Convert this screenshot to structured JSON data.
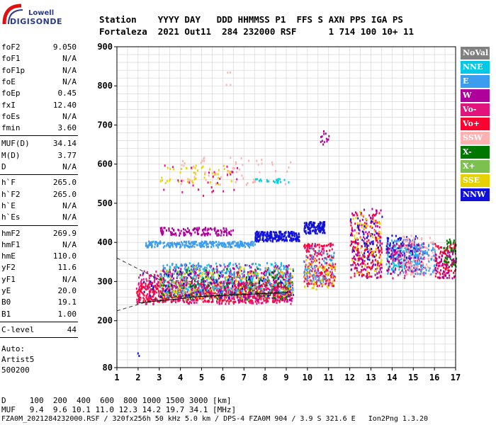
{
  "logo": {
    "top": "Lowell",
    "bottom": "DIGISONDE"
  },
  "header": {
    "line1": "Station    YYYY DAY   DDD HHMMSS P1  FFS S AXN PPS IGA PS",
    "line2": "Fortaleza  2021 Out11  284 232000 RSF      1 714 100 10+ 11"
  },
  "params_groups": [
    [
      {
        "label": "foF2",
        "value": "9.050"
      },
      {
        "label": "foF1",
        "value": "N/A"
      },
      {
        "label": "foF1p",
        "value": "N/A"
      },
      {
        "label": "foE",
        "value": "N/A"
      },
      {
        "label": "foEp",
        "value": "0.45"
      },
      {
        "label": "fxI",
        "value": "12.40"
      },
      {
        "label": "foEs",
        "value": "N/A"
      },
      {
        "label": "fmin",
        "value": "3.60"
      }
    ],
    [
      {
        "label": "MUF(D)",
        "value": "34.14"
      },
      {
        "label": "M(D)",
        "value": "3.77"
      },
      {
        "label": "D",
        "value": "N/A"
      }
    ],
    [
      {
        "label": "h`F",
        "value": "265.0"
      },
      {
        "label": "h`F2",
        "value": "265.0"
      },
      {
        "label": "h`E",
        "value": "N/A"
      },
      {
        "label": "h`Es",
        "value": "N/A"
      }
    ],
    [
      {
        "label": "hmF2",
        "value": "269.9"
      },
      {
        "label": "hmF1",
        "value": "N/A"
      },
      {
        "label": "hmE",
        "value": "110.0"
      },
      {
        "label": "yF2",
        "value": "11.6"
      },
      {
        "label": "yF1",
        "value": "N/A"
      },
      {
        "label": "yE",
        "value": "20.0"
      },
      {
        "label": "B0",
        "value": "19.1"
      },
      {
        "label": "B1",
        "value": "1.00"
      }
    ],
    [
      {
        "label": "C-level",
        "value": "44"
      }
    ]
  ],
  "autoscale": {
    "line1": "Auto:",
    "line2": "Artist5",
    "line3": "500200"
  },
  "bottom": {
    "d_row": "D     100  200  400  600  800 1000 1500 3000 [km]",
    "muf_row": "MUF   9.4  9.6 10.1 11.0 12.3 14.2 19.7 34.1 [MHz]",
    "file_row": "FZA0M_2021284232000.RSF / 320fx256h 50 kHz 5.0 km / DPS-4 FZA0M 904 / 3.9 S 321.6 E   Ion2Png 1.3.20"
  },
  "legend": [
    {
      "label": "NoVal",
      "color": "#808080"
    },
    {
      "label": "NNE",
      "color": "#00c8e6"
    },
    {
      "label": "E",
      "color": "#3c9cf0"
    },
    {
      "label": "W",
      "color": "#b0009c"
    },
    {
      "label": "Vo-",
      "color": "#e0147c"
    },
    {
      "label": "Vo+",
      "color": "#ff0030"
    },
    {
      "label": "SSW",
      "color": "#ffb0b0"
    },
    {
      "label": "X-",
      "color": "#007800"
    },
    {
      "label": "X+",
      "color": "#7cc050"
    },
    {
      "label": "SSE",
      "color": "#e6d200"
    },
    {
      "label": "NNW",
      "color": "#1010dc"
    }
  ],
  "chart_data": {
    "type": "scatter",
    "title": "",
    "xlabel": "",
    "ylabel": "",
    "xlim": [
      1,
      17
    ],
    "ylim": [
      80,
      900
    ],
    "x_ticks": [
      1,
      2,
      3,
      4,
      5,
      6,
      7,
      8,
      9,
      10,
      11,
      12,
      13,
      14,
      15,
      16,
      17
    ],
    "y_ticks": [
      80,
      200,
      300,
      400,
      500,
      600,
      700,
      800,
      900
    ],
    "grid": true,
    "legend_position": "right",
    "clusters": [
      {
        "color": "#ff0030",
        "x": [
          1.9,
          9.2
        ],
        "y": [
          250,
          300
        ],
        "count": 700
      },
      {
        "color": "#e0147c",
        "x": [
          1.9,
          9.3
        ],
        "y": [
          245,
          330
        ],
        "count": 450
      },
      {
        "color": "#b0009c",
        "x": [
          3.0,
          9.3
        ],
        "y": [
          255,
          345
        ],
        "count": 320
      },
      {
        "color": "#3c9cf0",
        "x": [
          3.0,
          9.3
        ],
        "y": [
          265,
          350
        ],
        "count": 250
      },
      {
        "color": "#00c8e6",
        "x": [
          3.0,
          9.3
        ],
        "y": [
          270,
          350
        ],
        "count": 150
      },
      {
        "color": "#e6d200",
        "x": [
          3.0,
          9.3
        ],
        "y": [
          260,
          340
        ],
        "count": 150
      },
      {
        "color": "#007800",
        "x": [
          3.0,
          9.3
        ],
        "y": [
          255,
          335
        ],
        "count": 100
      },
      {
        "color": "#7cc050",
        "x": [
          3.0,
          9.3
        ],
        "y": [
          255,
          335
        ],
        "count": 60
      },
      {
        "color": "#1010dc",
        "x": [
          2.0,
          9.0
        ],
        "y": [
          260,
          330
        ],
        "count": 60
      },
      {
        "color": "#3c9cf0",
        "x": [
          2.3,
          7.5
        ],
        "y": [
          390,
          405
        ],
        "count": 260
      },
      {
        "color": "#b0009c",
        "x": [
          3.0,
          6.5
        ],
        "y": [
          420,
          440
        ],
        "count": 130
      },
      {
        "color": "#1010dc",
        "x": [
          7.5,
          9.6
        ],
        "y": [
          405,
          430
        ],
        "count": 230
      },
      {
        "color": "#1010dc",
        "x": [
          9.8,
          10.8
        ],
        "y": [
          425,
          455
        ],
        "count": 120
      },
      {
        "color": "#ff0030",
        "x": [
          9.8,
          11.3
        ],
        "y": [
          290,
          400
        ],
        "count": 140
      },
      {
        "color": "#e0147c",
        "x": [
          9.8,
          11.3
        ],
        "y": [
          290,
          400
        ],
        "count": 90
      },
      {
        "color": "#e6d200",
        "x": [
          9.8,
          11.3
        ],
        "y": [
          280,
          360
        ],
        "count": 60
      },
      {
        "color": "#3c9cf0",
        "x": [
          9.8,
          11.3
        ],
        "y": [
          300,
          390
        ],
        "count": 60
      },
      {
        "color": "#b0009c",
        "x": [
          12.0,
          13.5
        ],
        "y": [
          310,
          490
        ],
        "count": 150
      },
      {
        "color": "#ff0030",
        "x": [
          12.0,
          13.5
        ],
        "y": [
          310,
          480
        ],
        "count": 130
      },
      {
        "color": "#e6d200",
        "x": [
          12.0,
          13.5
        ],
        "y": [
          320,
          480
        ],
        "count": 70
      },
      {
        "color": "#1010dc",
        "x": [
          12.0,
          13.5
        ],
        "y": [
          340,
          470
        ],
        "count": 40
      },
      {
        "color": "#3c9cf0",
        "x": [
          13.7,
          15.2
        ],
        "y": [
          320,
          410
        ],
        "count": 120
      },
      {
        "color": "#00c8e6",
        "x": [
          13.7,
          15.2
        ],
        "y": [
          330,
          400
        ],
        "count": 90
      },
      {
        "color": "#1010dc",
        "x": [
          13.7,
          15.2
        ],
        "y": [
          360,
          420
        ],
        "count": 60
      },
      {
        "color": "#e0147c",
        "x": [
          13.7,
          15.5
        ],
        "y": [
          310,
          400
        ],
        "count": 80
      },
      {
        "color": "#b0009c",
        "x": [
          13.7,
          15.5
        ],
        "y": [
          320,
          400
        ],
        "count": 70
      },
      {
        "color": "#ffb0b0",
        "x": [
          14.5,
          16.0
        ],
        "y": [
          320,
          420
        ],
        "count": 100
      },
      {
        "color": "#3c9cf0",
        "x": [
          15.0,
          16.0
        ],
        "y": [
          320,
          400
        ],
        "count": 80
      },
      {
        "color": "#ff0030",
        "x": [
          16.0,
          17.0
        ],
        "y": [
          310,
          400
        ],
        "count": 90
      },
      {
        "color": "#007800",
        "x": [
          16.4,
          17.0
        ],
        "y": [
          340,
          410
        ],
        "count": 50
      },
      {
        "color": "#b0009c",
        "x": [
          16.0,
          17.0
        ],
        "y": [
          310,
          380
        ],
        "count": 50
      },
      {
        "color": "#e6d200",
        "x": [
          3.0,
          6.5
        ],
        "y": [
          550,
          600
        ],
        "count": 50
      },
      {
        "color": "#ffb0b0",
        "x": [
          4.0,
          9.2
        ],
        "y": [
          550,
          620
        ],
        "count": 60
      },
      {
        "color": "#e0147c",
        "x": [
          3.0,
          7.0
        ],
        "y": [
          520,
          600
        ],
        "count": 30
      },
      {
        "color": "#00c8e6",
        "x": [
          7.5,
          9.2
        ],
        "y": [
          555,
          565
        ],
        "count": 20
      },
      {
        "color": "#b0009c",
        "x": [
          10.5,
          11.0
        ],
        "y": [
          650,
          690
        ],
        "count": 15
      },
      {
        "color": "#ffb0b0",
        "x": [
          6.0,
          6.4
        ],
        "y": [
          800,
          860
        ],
        "count": 4
      },
      {
        "color": "#1010dc",
        "x": [
          1.9,
          2.1
        ],
        "y": [
          110,
          120
        ],
        "count": 2
      }
    ],
    "trace_lines": [
      {
        "style": "dashed",
        "color": "#333333",
        "x": [
          1.0,
          3.0,
          9.2
        ],
        "y": [
          360,
          305,
          285
        ]
      },
      {
        "style": "dashed",
        "color": "#333333",
        "x": [
          1.0,
          3.0,
          9.2
        ],
        "y": [
          225,
          258,
          275
        ]
      },
      {
        "style": "solid",
        "color": "#000000",
        "x": [
          2.0,
          5.0,
          9.2
        ],
        "y": [
          245,
          262,
          272
        ]
      }
    ]
  }
}
